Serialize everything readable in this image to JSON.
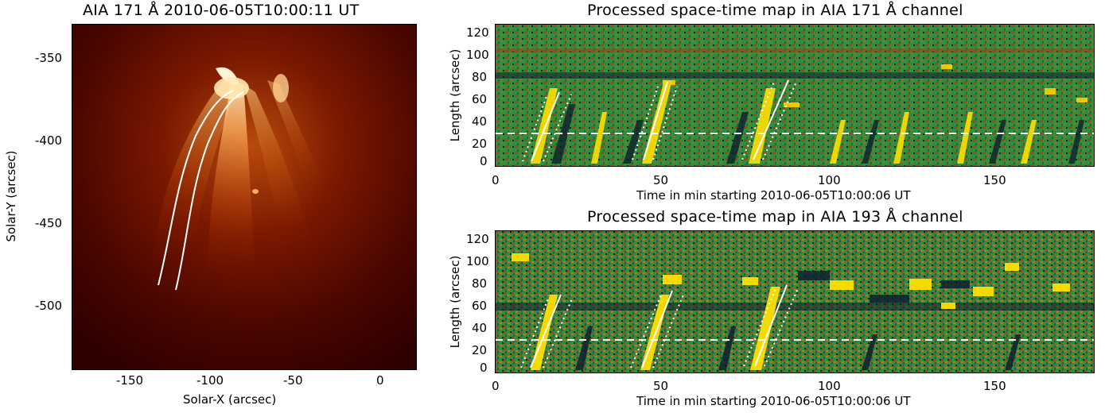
{
  "left": {
    "title": "AIA 171 Å 2010-06-05T10:00:11 UT",
    "xlabel": "Solar-X (arcsec)",
    "ylabel": "Solar-Y (arcsec)",
    "xticks": [
      "-150",
      "-100",
      "-50",
      "0"
    ],
    "yticks": [
      "-350",
      "-400",
      "-450",
      "-500"
    ]
  },
  "top": {
    "title": "Processed space-time map in AIA 171 Å channel",
    "xlabel": "Time in min starting 2010-06-05T10:00:06 UT",
    "ylabel": "Length (arcsec)",
    "xticks": [
      "0",
      "50",
      "100",
      "150"
    ],
    "yticks": [
      "120",
      "100",
      "80",
      "60",
      "40",
      "20",
      "0"
    ]
  },
  "bottom": {
    "title": "Processed space-time map in AIA 193 Å channel",
    "xlabel": "Time in min starting 2010-06-05T10:00:06 UT",
    "ylabel": "Length (arcsec)",
    "xticks": [
      "0",
      "50",
      "100",
      "150"
    ],
    "yticks": [
      "120",
      "100",
      "80",
      "60",
      "40",
      "20",
      "0"
    ]
  },
  "colors": {
    "euv_dark": "#3a0000",
    "euv_bright": "#fff2c0",
    "map_green": "#2f8f3a",
    "map_red": "#b83a12",
    "map_yellow": "#ffe000",
    "map_dark": "#0b2030"
  }
}
